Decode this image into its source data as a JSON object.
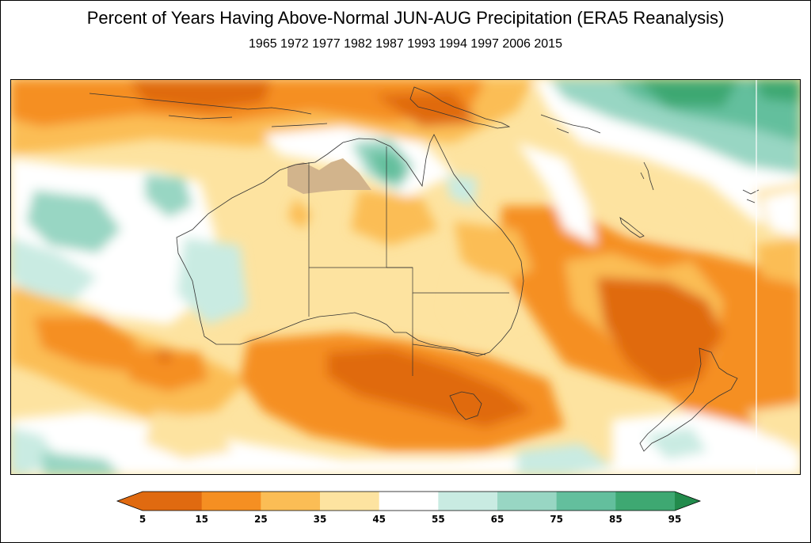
{
  "title": "Percent of Years Having Above-Normal JUN-AUG Precipitation (ERA5 Reanalysis)",
  "subtitle": "1965 1972 1977 1982 1987 1993 1994 1997 2006 2015",
  "colorbar": {
    "ticks": [
      "5",
      "15",
      "25",
      "35",
      "45",
      "55",
      "65",
      "75",
      "85",
      "95"
    ],
    "colors": [
      "#e06a10",
      "#f58f22",
      "#fbbd55",
      "#fde3a0",
      "#ffffff",
      "#c9ebe2",
      "#98d6c3",
      "#63bf9d",
      "#3ea872",
      "#228b4c"
    ]
  },
  "map": {
    "region": "Australia",
    "masked_color": "#d2b48c"
  }
}
